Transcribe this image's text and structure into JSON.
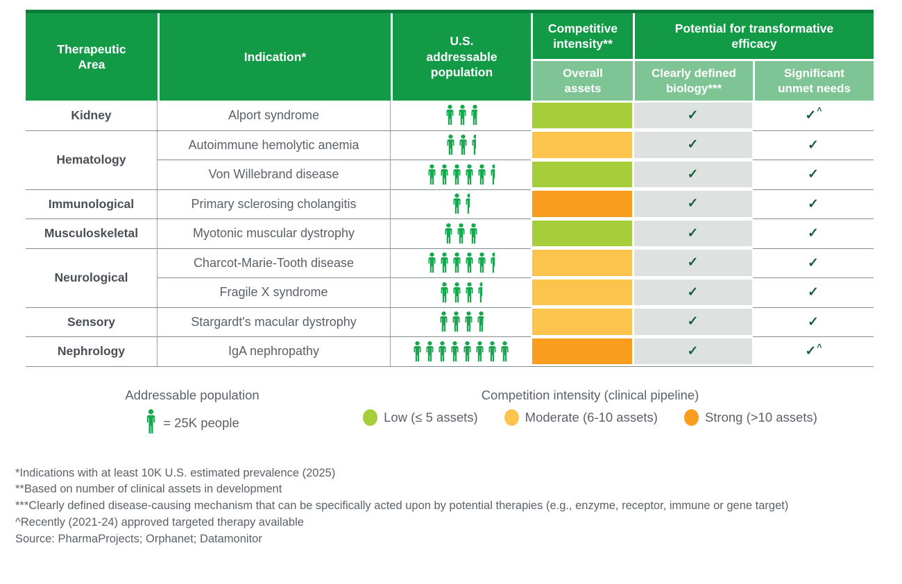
{
  "header": {
    "area": "Therapeutic\nArea",
    "indication": "Indication*",
    "population": "U.S.\naddressable\npopulation",
    "competitive": "Competitive\nintensity**",
    "potential": "Potential for transformative\nefficacy",
    "sub_overall": "Overall\nassets",
    "sub_biology": "Clearly defined\nbiology***",
    "sub_unmet": "Significant\nunmet needs"
  },
  "rows": [
    {
      "area": "Kidney",
      "area_rowspan": 1,
      "indication": "Alport syndrome",
      "icons_full": 2,
      "icon_partial": 0.75,
      "intensity": "low",
      "biology": "✓",
      "unmet": "✓",
      "unmet_sup": "^"
    },
    {
      "area": "Hematology",
      "area_rowspan": 2,
      "indication": "Autoimmune hemolytic anemia",
      "icons_full": 2,
      "icon_partial": 0.5,
      "intensity": "moderate",
      "biology": "✓",
      "unmet": "✓",
      "unmet_sup": ""
    },
    {
      "indication": "Von Willebrand disease",
      "icons_full": 5,
      "icon_partial": 0.5,
      "intensity": "low",
      "biology": "✓",
      "unmet": "✓",
      "unmet_sup": ""
    },
    {
      "area": "Immunological",
      "area_rowspan": 1,
      "indication": "Primary sclerosing cholangitis",
      "icons_full": 1,
      "icon_partial": 0.5,
      "intensity": "strong",
      "biology": "✓",
      "unmet": "✓",
      "unmet_sup": ""
    },
    {
      "area": "Musculoskeletal",
      "area_rowspan": 1,
      "indication": "Myotonic muscular dystrophy",
      "icons_full": 3,
      "icon_partial": 0,
      "intensity": "low",
      "biology": "✓",
      "unmet": "✓",
      "unmet_sup": ""
    },
    {
      "area": "Neurological",
      "area_rowspan": 2,
      "indication": "Charcot-Marie-Tooth disease",
      "icons_full": 5,
      "icon_partial": 0.5,
      "intensity": "moderate",
      "biology": "✓",
      "unmet": "✓",
      "unmet_sup": ""
    },
    {
      "indication": "Fragile X syndrome",
      "icons_full": 3,
      "icon_partial": 0.5,
      "intensity": "moderate",
      "biology": "✓",
      "unmet": "✓",
      "unmet_sup": ""
    },
    {
      "area": "Sensory",
      "area_rowspan": 1,
      "indication": "Stargardt's macular dystrophy",
      "icons_full": 3,
      "icon_partial": 0.75,
      "intensity": "moderate",
      "biology": "✓",
      "unmet": "✓",
      "unmet_sup": ""
    },
    {
      "area": "Nephrology",
      "area_rowspan": 1,
      "indication": "IgA nephropathy",
      "icons_full": 8,
      "icon_partial": 0,
      "intensity": "strong",
      "biology": "✓",
      "unmet": "✓",
      "unmet_sup": "^"
    }
  ],
  "legend": {
    "population": {
      "title": "Addressable population",
      "person_label": "= 25K people"
    },
    "competition": {
      "title": "Competition intensity (clinical pipeline)",
      "colors": {
        "low": "#a6ce3b",
        "moderate": "#fcc34d",
        "strong": "#f99d1f"
      },
      "items": [
        {
          "key": "low",
          "label": "Low (≤ 5 assets)"
        },
        {
          "key": "moderate",
          "label": "Moderate (6-10 assets)"
        },
        {
          "key": "strong",
          "label": "Strong (>10 assets)"
        }
      ]
    }
  },
  "footnotes": [
    "*Indications with at least 10K U.S. estimated prevalence (2025)",
    "**Based on number of clinical assets in development",
    "***Clearly defined disease-causing mechanism that can be specifically acted upon by potential therapies (e.g., enzyme, receptor, immune or gene target)",
    "^Recently (2021-24) approved targeted therapy available",
    "Source: PharmaProjects; Orphanet; Datamonitor"
  ],
  "chart_data": {
    "type": "table",
    "icon_unit": "1 person icon = 25K people",
    "columns": [
      "Therapeutic Area",
      "Indication",
      "U.S. addressable population (icons of 25K people)",
      "Competitive intensity (overall assets)",
      "Clearly defined biology",
      "Significant unmet needs"
    ],
    "rows": [
      [
        "Kidney",
        "Alport syndrome",
        2.75,
        "Low (≤ 5 assets)",
        "✓",
        "✓^"
      ],
      [
        "Hematology",
        "Autoimmune hemolytic anemia",
        2.5,
        "Moderate (6-10 assets)",
        "✓",
        "✓"
      ],
      [
        "Hematology",
        "Von Willebrand disease",
        5.5,
        "Low (≤ 5 assets)",
        "✓",
        "✓"
      ],
      [
        "Immunological",
        "Primary sclerosing cholangitis",
        1.5,
        "Strong (>10 assets)",
        "✓",
        "✓"
      ],
      [
        "Musculoskeletal",
        "Myotonic muscular dystrophy",
        3,
        "Low (≤ 5 assets)",
        "✓",
        "✓"
      ],
      [
        "Neurological",
        "Charcot-Marie-Tooth disease",
        5.5,
        "Moderate (6-10 assets)",
        "✓",
        "✓"
      ],
      [
        "Neurological",
        "Fragile X syndrome",
        3.5,
        "Moderate (6-10 assets)",
        "✓",
        "✓"
      ],
      [
        "Sensory",
        "Stargardt's macular dystrophy",
        3.75,
        "Moderate (6-10 assets)",
        "✓",
        "✓"
      ],
      [
        "Nephrology",
        "IgA nephropathy",
        8,
        "Strong (>10 assets)",
        "✓",
        "✓^"
      ]
    ]
  },
  "colors": {
    "header_green": "#129a47",
    "header_top_strip": "#0a7e38",
    "subheader_green": "#7fc495",
    "gray_cell": "#dde1df",
    "check_green": "#175f3c",
    "icon_green": "#17a74e",
    "row_border": "#848c92",
    "text_dark": "#494f54",
    "text_body": "#5a6167"
  }
}
